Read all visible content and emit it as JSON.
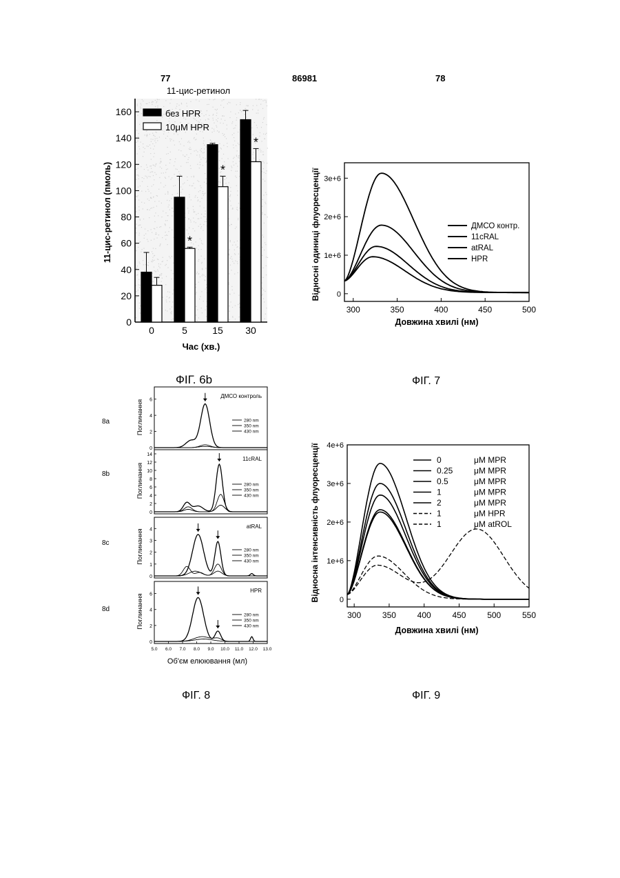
{
  "header": {
    "left_page": "77",
    "patent_no": "86981",
    "right_page": "78"
  },
  "captions": {
    "fig6b": "ФІГ. 6b",
    "fig7": "ФІГ. 7",
    "fig8": "ФІГ. 8",
    "fig9": "ФІГ. 9"
  },
  "colors": {
    "ink": "#000000",
    "paper": "#ffffff",
    "halftone": "#d2d2d2"
  },
  "chart_data": [
    {
      "id": "fig6b",
      "type": "bar",
      "title": "11-цис-ретинол",
      "xlabel": "Час (хв.)",
      "ylabel": "11-цис-ретинол (пмоль)",
      "ylim": [
        0,
        170
      ],
      "yticks": [
        "0",
        "20",
        "40",
        "60",
        "80",
        "100",
        "120",
        "140",
        "160"
      ],
      "categories": [
        "0",
        "5",
        "15",
        "30"
      ],
      "series": [
        {
          "name": "без HPR",
          "values": [
            38,
            95,
            135,
            154
          ],
          "errors": [
            15,
            16,
            1,
            7
          ],
          "fill": "#000000"
        },
        {
          "name": "10μM HPR",
          "values": [
            28,
            56,
            103,
            122
          ],
          "errors": [
            6,
            1,
            8,
            10
          ],
          "fill": "#ffffff"
        }
      ],
      "significance": [
        "",
        "*",
        "*",
        "*"
      ],
      "significance_mark": "*",
      "legend_position": "top-left",
      "background": "speckled"
    },
    {
      "id": "fig7",
      "type": "line",
      "xlabel": "Довжина хвилі (нм)",
      "ylabel": "Відносні одиниці флуоресценції",
      "xlim": [
        290,
        500
      ],
      "ylim": [
        -200000,
        3400000
      ],
      "xticks": [
        "300",
        "350",
        "400",
        "450",
        "500"
      ],
      "yticks": [
        {
          "v": 0,
          "label": "0"
        },
        {
          "v": 1000000,
          "label": "1e+6"
        },
        {
          "v": 2000000,
          "label": "2e+6"
        },
        {
          "v": 3000000,
          "label": "3e+6"
        }
      ],
      "legend_position": "right",
      "series": [
        {
          "name": "ДМСО контр.",
          "peak_x": 332,
          "peak_y": 3100000,
          "start_y": 300000
        },
        {
          "name": "11cRAL",
          "peak_x": 332,
          "peak_y": 1750000,
          "start_y": 300000
        },
        {
          "name": "atRAL",
          "peak_x": 326,
          "peak_y": 1200000,
          "start_y": 300000
        },
        {
          "name": "HPR",
          "peak_x": 322,
          "peak_y": 930000,
          "start_y": 300000
        }
      ]
    },
    {
      "id": "fig8",
      "type": "line",
      "xlabel": "Об'єм елюювання (мл)",
      "ylabel": "Поглинання",
      "xlim": [
        5.0,
        13.0
      ],
      "xticks": [
        "5.0",
        "6.0",
        "7.0",
        "8.0",
        "9.0",
        "10.0",
        "11.0",
        "12.0",
        "13.0"
      ],
      "legend_entries": [
        "280 nm",
        "350 nm",
        "430 nm"
      ],
      "panels": [
        {
          "id": "8a",
          "title": "ДМСО контроль",
          "ylim": [
            0,
            7
          ],
          "yticks": [
            "0",
            "2",
            "4",
            "6"
          ],
          "arrow_x": 8.6,
          "series": [
            {
              "name": "280 nm",
              "peaks": [
                {
                  "x": 8.6,
                  "h": 5.4,
                  "w": 0.45
                },
                {
                  "x": 7.6,
                  "h": 0.9,
                  "w": 0.5
                }
              ]
            },
            {
              "name": "350 nm",
              "peaks": [
                {
                  "x": 8.6,
                  "h": 0.35,
                  "w": 0.5
                }
              ]
            },
            {
              "name": "430 nm",
              "peaks": [
                {
                  "x": 8.6,
                  "h": 0.15,
                  "w": 0.6
                }
              ]
            }
          ]
        },
        {
          "id": "8b",
          "title": "11cRAL",
          "ylim": [
            0,
            14
          ],
          "yticks": [
            "0",
            "2",
            "4",
            "6",
            "8",
            "10",
            "12",
            "14"
          ],
          "arrow_x": 9.6,
          "series": [
            {
              "name": "280 nm",
              "peaks": [
                {
                  "x": 9.6,
                  "h": 11.5,
                  "w": 0.32
                },
                {
                  "x": 7.3,
                  "h": 2.2,
                  "w": 0.35
                },
                {
                  "x": 8.1,
                  "h": 1.4,
                  "w": 0.5
                }
              ]
            },
            {
              "name": "350 nm",
              "peaks": [
                {
                  "x": 9.7,
                  "h": 4.2,
                  "w": 0.35
                },
                {
                  "x": 7.4,
                  "h": 1.2,
                  "w": 0.4
                }
              ]
            },
            {
              "name": "430 nm",
              "peaks": [
                {
                  "x": 9.7,
                  "h": 1.6,
                  "w": 0.4
                },
                {
                  "x": 7.4,
                  "h": 0.6,
                  "w": 0.4
                }
              ]
            }
          ]
        },
        {
          "id": "8c",
          "title": "atRAL",
          "ylim": [
            0,
            4.6
          ],
          "yticks": [
            "0",
            "1",
            "2",
            "3",
            "4"
          ],
          "arrow_x": 8.1,
          "arrow2_x": 9.5,
          "series": [
            {
              "name": "280 nm",
              "peaks": [
                {
                  "x": 8.1,
                  "h": 3.5,
                  "w": 0.55
                },
                {
                  "x": 9.5,
                  "h": 2.9,
                  "w": 0.3
                },
                {
                  "x": 11.9,
                  "h": 0.2,
                  "w": 0.15
                }
              ]
            },
            {
              "name": "350 nm",
              "peaks": [
                {
                  "x": 7.3,
                  "h": 0.8,
                  "w": 0.35
                },
                {
                  "x": 9.5,
                  "h": 1.0,
                  "w": 0.35
                },
                {
                  "x": 8.2,
                  "h": 0.3,
                  "w": 0.4
                }
              ]
            },
            {
              "name": "430 nm",
              "peaks": [
                {
                  "x": 7.9,
                  "h": 0.4,
                  "w": 0.6
                },
                {
                  "x": 9.5,
                  "h": 0.4,
                  "w": 0.4
                }
              ]
            }
          ]
        },
        {
          "id": "8d",
          "title": "HPR",
          "ylim": [
            0,
            7
          ],
          "yticks": [
            "0",
            "2",
            "4",
            "6"
          ],
          "arrow_x": 8.1,
          "arrow2_x": 9.5,
          "series": [
            {
              "name": "280 nm",
              "peaks": [
                {
                  "x": 8.1,
                  "h": 5.5,
                  "w": 0.55
                },
                {
                  "x": 9.5,
                  "h": 1.3,
                  "w": 0.28
                },
                {
                  "x": 11.9,
                  "h": 0.6,
                  "w": 0.12
                }
              ]
            },
            {
              "name": "350 nm",
              "peaks": [
                {
                  "x": 8.4,
                  "h": 0.6,
                  "w": 0.8
                },
                {
                  "x": 9.5,
                  "h": 0.35,
                  "w": 0.4
                }
              ]
            },
            {
              "name": "430 nm",
              "peaks": [
                {
                  "x": 8.5,
                  "h": 0.3,
                  "w": 0.9
                }
              ]
            }
          ]
        }
      ]
    },
    {
      "id": "fig9",
      "type": "line",
      "xlabel": "Довжина хвилі (нм)",
      "ylabel": "Відносна інтенсивність флуоресценції",
      "xlim": [
        290,
        550
      ],
      "ylim": [
        -200000,
        4000000
      ],
      "xticks": [
        "300",
        "350",
        "400",
        "450",
        "500",
        "550"
      ],
      "yticks": [
        {
          "v": 0,
          "label": "0"
        },
        {
          "v": 1000000,
          "label": "1e+6"
        },
        {
          "v": 2000000,
          "label": "2e+6"
        },
        {
          "v": 3000000,
          "label": "3e+6"
        },
        {
          "v": 4000000,
          "label": "4e+6"
        }
      ],
      "legend_position": "top-right",
      "series": [
        {
          "conc": "0",
          "name": "μM MPR",
          "dash": false,
          "peak_x": 337,
          "peak_y": 3520000
        },
        {
          "conc": "0.25",
          "name": "μM MPR",
          "dash": false,
          "peak_x": 337,
          "peak_y": 3000000
        },
        {
          "conc": "0.5",
          "name": "μM MPR",
          "dash": false,
          "peak_x": 337,
          "peak_y": 2700000
        },
        {
          "conc": "1",
          "name": "μM MPR",
          "dash": false,
          "peak_x": 337,
          "peak_y": 2320000
        },
        {
          "conc": "2",
          "name": "μM MPR",
          "dash": false,
          "peak_x": 337,
          "peak_y": 2260000
        },
        {
          "conc": "1",
          "name": "μM HPR",
          "dash": true,
          "peak_x": 334,
          "peak_y": 1120000
        },
        {
          "conc": "1",
          "name": "μM atROL",
          "dash": true,
          "peak_x": 333,
          "peak_y": 880000,
          "peak2_x": 475,
          "peak2_y": 1820000
        }
      ]
    }
  ]
}
